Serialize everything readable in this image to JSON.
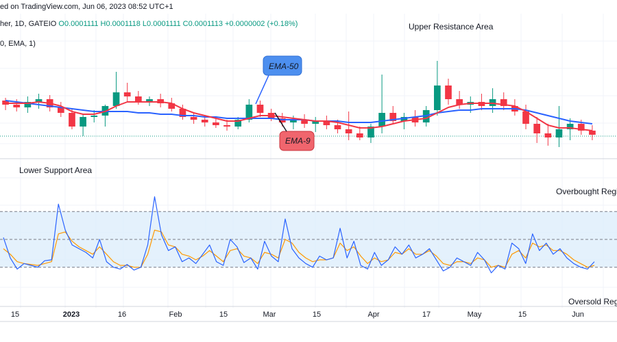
{
  "header": {
    "published": "ed on TradingView.com, Jun 06, 2023 08:52 UTC+1",
    "symbol": "her, 1D, GATEIO",
    "ohlc": "O0.0001111 H0.0001118 L0.0001111 C0.0001113 +0.0000002 (+0.18%)",
    "indicator": "0, EMA, 1)"
  },
  "annotations": {
    "upper_area": "Upper Resistance Area",
    "lower_area": "Lower Support Area",
    "ema50": "EMA-50",
    "ema9": "EMA-9",
    "overbought": "Overbought Regio",
    "oversold": "Oversold Regio"
  },
  "colors": {
    "up": "#089981",
    "down": "#f23645",
    "ema50": "#2962ff",
    "ema9": "#f23645",
    "osc_fast": "#2962ff",
    "osc_slow": "#ff9800",
    "osc_band": "#ddeefb",
    "ema50_callout": "#4d8fef",
    "ema9_callout": "#f0656d"
  },
  "chart_data": {
    "type": "candlestick",
    "x_ticks": [
      "15",
      "2023",
      "16",
      "Feb",
      "15",
      "Mar",
      "15",
      "Apr",
      "17",
      "May",
      "15",
      "Jun"
    ],
    "price_panel": {
      "candles_ohlc": [
        [
          1.39,
          1.41,
          1.32,
          1.36
        ],
        [
          1.36,
          1.4,
          1.31,
          1.34
        ],
        [
          1.34,
          1.42,
          1.3,
          1.38
        ],
        [
          1.38,
          1.44,
          1.33,
          1.4
        ],
        [
          1.4,
          1.43,
          1.31,
          1.34
        ],
        [
          1.34,
          1.38,
          1.27,
          1.3
        ],
        [
          1.3,
          1.33,
          1.18,
          1.2
        ],
        [
          1.2,
          1.29,
          1.13,
          1.27
        ],
        [
          1.27,
          1.32,
          1.23,
          1.28
        ],
        [
          1.28,
          1.36,
          1.2,
          1.35
        ],
        [
          1.35,
          1.6,
          1.33,
          1.45
        ],
        [
          1.45,
          1.52,
          1.38,
          1.42
        ],
        [
          1.42,
          1.46,
          1.36,
          1.38
        ],
        [
          1.38,
          1.42,
          1.35,
          1.4
        ],
        [
          1.4,
          1.44,
          1.34,
          1.37
        ],
        [
          1.37,
          1.41,
          1.31,
          1.33
        ],
        [
          1.33,
          1.36,
          1.25,
          1.27
        ],
        [
          1.27,
          1.3,
          1.22,
          1.25
        ],
        [
          1.25,
          1.28,
          1.2,
          1.23
        ],
        [
          1.23,
          1.26,
          1.19,
          1.21
        ],
        [
          1.21,
          1.25,
          1.17,
          1.2
        ],
        [
          1.2,
          1.27,
          1.18,
          1.25
        ],
        [
          1.25,
          1.4,
          1.23,
          1.36
        ],
        [
          1.36,
          1.39,
          1.27,
          1.3
        ],
        [
          1.3,
          1.33,
          1.24,
          1.26
        ],
        [
          1.26,
          1.3,
          1.2,
          1.23
        ],
        [
          1.23,
          1.28,
          1.18,
          1.25
        ],
        [
          1.25,
          1.29,
          1.19,
          1.22
        ],
        [
          1.22,
          1.27,
          1.16,
          1.24
        ],
        [
          1.24,
          1.28,
          1.18,
          1.21
        ],
        [
          1.21,
          1.25,
          1.15,
          1.18
        ],
        [
          1.18,
          1.31,
          1.1,
          1.15
        ],
        [
          1.15,
          1.2,
          1.1,
          1.12
        ],
        [
          1.12,
          1.22,
          1.08,
          1.2
        ],
        [
          1.2,
          1.58,
          1.15,
          1.3
        ],
        [
          1.3,
          1.35,
          1.22,
          1.24
        ],
        [
          1.24,
          1.3,
          1.18,
          1.27
        ],
        [
          1.27,
          1.32,
          1.2,
          1.23
        ],
        [
          1.23,
          1.35,
          1.2,
          1.32
        ],
        [
          1.32,
          1.68,
          1.28,
          1.5
        ],
        [
          1.5,
          1.55,
          1.36,
          1.4
        ],
        [
          1.4,
          1.46,
          1.33,
          1.36
        ],
        [
          1.36,
          1.42,
          1.3,
          1.38
        ],
        [
          1.38,
          1.44,
          1.32,
          1.35
        ],
        [
          1.35,
          1.48,
          1.3,
          1.4
        ],
        [
          1.4,
          1.45,
          1.32,
          1.35
        ],
        [
          1.35,
          1.4,
          1.28,
          1.31
        ],
        [
          1.31,
          1.36,
          1.18,
          1.22
        ],
        [
          1.22,
          1.27,
          1.08,
          1.15
        ],
        [
          1.15,
          1.22,
          1.06,
          1.12
        ],
        [
          1.12,
          1.35,
          1.05,
          1.18
        ],
        [
          1.18,
          1.26,
          1.1,
          1.22
        ],
        [
          1.22,
          1.25,
          1.14,
          1.17
        ],
        [
          1.17,
          1.21,
          1.1,
          1.14
        ]
      ],
      "ema50": [
        1.39,
        1.38,
        1.37,
        1.36,
        1.35,
        1.34,
        1.33,
        1.32,
        1.31,
        1.31,
        1.31,
        1.31,
        1.3,
        1.3,
        1.29,
        1.29,
        1.28,
        1.28,
        1.27,
        1.27,
        1.26,
        1.26,
        1.26,
        1.26,
        1.26,
        1.25,
        1.25,
        1.25,
        1.24,
        1.24,
        1.24,
        1.23,
        1.23,
        1.23,
        1.24,
        1.25,
        1.26,
        1.27,
        1.28,
        1.3,
        1.31,
        1.32,
        1.32,
        1.33,
        1.33,
        1.33,
        1.33,
        1.32,
        1.3,
        1.28,
        1.26,
        1.24,
        1.23,
        1.22
      ],
      "ema9": [
        1.37,
        1.37,
        1.37,
        1.38,
        1.37,
        1.35,
        1.31,
        1.29,
        1.29,
        1.31,
        1.35,
        1.38,
        1.38,
        1.38,
        1.38,
        1.37,
        1.33,
        1.3,
        1.28,
        1.26,
        1.24,
        1.24,
        1.26,
        1.28,
        1.28,
        1.27,
        1.26,
        1.25,
        1.24,
        1.24,
        1.23,
        1.21,
        1.19,
        1.19,
        1.2,
        1.22,
        1.24,
        1.25,
        1.26,
        1.3,
        1.34,
        1.36,
        1.37,
        1.37,
        1.37,
        1.36,
        1.35,
        1.31,
        1.26,
        1.21,
        1.19,
        1.19,
        1.18,
        1.17
      ]
    },
    "oscillator_panel": {
      "overbought_level": 80,
      "oversold_level": 20,
      "mid_level": 50,
      "ylim": [
        0,
        100
      ],
      "fast": [
        52,
        30,
        18,
        24,
        22,
        20,
        27,
        28,
        88,
        60,
        44,
        40,
        36,
        30,
        50,
        26,
        20,
        18,
        23,
        17,
        20,
        44,
        96,
        55,
        38,
        42,
        26,
        30,
        24,
        34,
        44,
        26,
        22,
        50,
        42,
        25,
        30,
        18,
        48,
        32,
        26,
        72,
        40,
        30,
        24,
        20,
        32,
        28,
        30,
        62,
        30,
        48,
        22,
        18,
        36,
        22,
        28,
        42,
        34,
        44,
        30,
        34,
        40,
        28,
        16,
        20,
        30,
        26,
        22,
        36,
        28,
        14,
        22,
        18,
        46,
        40,
        24,
        56,
        38,
        46,
        34,
        40,
        30,
        24,
        20,
        18,
        26
      ],
      "slow": [
        40,
        34,
        26,
        24,
        23,
        22,
        24,
        26,
        56,
        58,
        48,
        42,
        38,
        34,
        42,
        34,
        26,
        22,
        22,
        20,
        20,
        34,
        60,
        58,
        44,
        42,
        34,
        32,
        28,
        32,
        38,
        32,
        26,
        38,
        40,
        32,
        30,
        24,
        36,
        34,
        30,
        50,
        46,
        36,
        30,
        26,
        28,
        28,
        30,
        46,
        38,
        42,
        32,
        24,
        30,
        26,
        28,
        36,
        34,
        40,
        34,
        34,
        38,
        32,
        24,
        22,
        26,
        26,
        24,
        30,
        28,
        20,
        22,
        20,
        34,
        38,
        30,
        46,
        42,
        44,
        38,
        38,
        34,
        28,
        24,
        20,
        22
      ]
    }
  }
}
